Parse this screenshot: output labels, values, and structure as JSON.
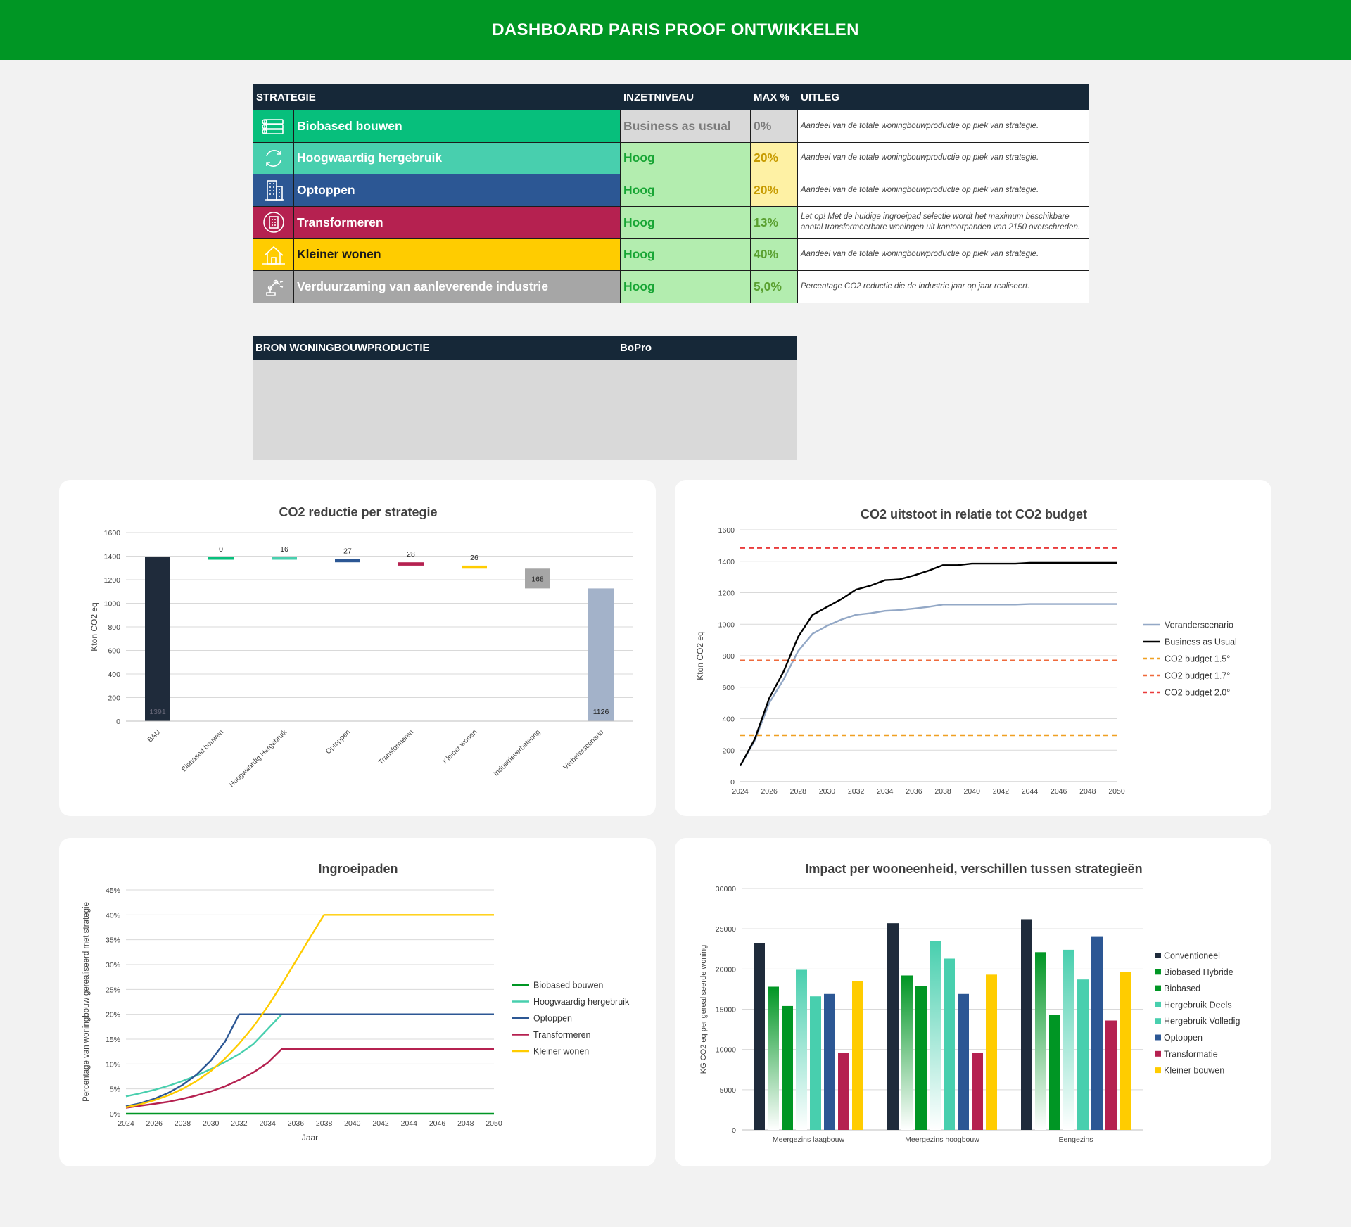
{
  "header": {
    "title": "DASHBOARD PARIS PROOF ONTWIKKELEN"
  },
  "strategy_table": {
    "columns": [
      "STRATEGIE",
      "INZETNIVEAU",
      "MAX %",
      "UITLEG"
    ],
    "rows": [
      {
        "icon": "timber-stack-icon",
        "name": "Biobased bouwen",
        "niveau": "Business as usual",
        "max": "0%",
        "uitleg": "Aandeel van de totale woningbouwproductie op piek van strategie.",
        "color": "#07bf7c"
      },
      {
        "icon": "recycle-arrows-icon",
        "name": "Hoogwaardig hergebruik",
        "niveau": "Hoog",
        "max": "20%",
        "uitleg": "Aandeel van de totale woningbouwproductie op piek van strategie.",
        "color": "#48cfae"
      },
      {
        "icon": "building-icon",
        "name": "Optoppen",
        "niveau": "Hoog",
        "max": "20%",
        "uitleg": "Aandeel van de totale woningbouwproductie op piek van strategie.",
        "color": "#2c5794"
      },
      {
        "icon": "transform-building-icon",
        "name": "Transformeren",
        "niveau": "Hoog",
        "max": "13%",
        "uitleg": "Let op! Met de huidige ingroeipad selectie wordt het maximum beschikbare aantal transformeerbare woningen uit kantoorpanden van 2150 overschreden.",
        "color": "#b52150"
      },
      {
        "icon": "small-house-icon",
        "name": "Kleiner wonen",
        "niveau": "Hoog",
        "max": "40%",
        "uitleg": "Aandeel van de totale woningbouwproductie op piek van strategie.",
        "color": "#ffcc00"
      },
      {
        "icon": "industry-robot-icon",
        "name": "Verduurzaming van aanleverende industrie",
        "niveau": "Hoog",
        "max": "5,0%",
        "uitleg": "Percentage CO2 reductie die de industrie jaar op jaar realiseert.",
        "color": "#a6a6a6"
      }
    ]
  },
  "bron": {
    "label": "BRON WONINGBOUWPRODUCTIE",
    "value": "BoPro"
  },
  "chart_data": [
    {
      "type": "bar",
      "title": "CO2 reductie per strategie",
      "ylabel": "Kton CO2 eq",
      "ylim": [
        0,
        1600
      ],
      "yticks": [
        0,
        200,
        400,
        600,
        800,
        1000,
        1200,
        1400,
        1600
      ],
      "categories": [
        "BAU",
        "Biobased bouwen",
        "Hoogwaardig Hergebruik",
        "Optoppen",
        "Transformeren",
        "Kleiner wonen",
        "Industrieverbetering",
        "Verbeterscenario"
      ],
      "values": [
        1391,
        0,
        16,
        27,
        28,
        26,
        168,
        1126
      ],
      "labels": [
        "1391",
        "0",
        "16",
        "27",
        "28",
        "26",
        "168",
        "1126"
      ],
      "colors": [
        "#1f2b3b",
        "#07bf7c",
        "#48cfae",
        "#2c5794",
        "#b52150",
        "#ffcc00",
        "#a6a6a6",
        "#a3b2c9"
      ],
      "grid": true
    },
    {
      "type": "line",
      "title": "CO2 uitstoot in relatie tot CO2 budget",
      "ylabel": "Kton CO2 eq",
      "ylim": [
        0,
        1600
      ],
      "yticks": [
        0,
        200,
        400,
        600,
        800,
        1000,
        1200,
        1400,
        1600
      ],
      "x": [
        2024,
        2025,
        2026,
        2027,
        2028,
        2029,
        2030,
        2031,
        2032,
        2033,
        2034,
        2035,
        2036,
        2037,
        2038,
        2039,
        2040,
        2041,
        2042,
        2043,
        2044,
        2045,
        2046,
        2047,
        2048,
        2049,
        2050
      ],
      "xticks": [
        2024,
        2026,
        2028,
        2030,
        2032,
        2034,
        2036,
        2038,
        2040,
        2042,
        2044,
        2046,
        2048,
        2050
      ],
      "series": [
        {
          "name": "Veranderscenario",
          "color": "#93a8c6",
          "dash": "",
          "values": [
            100,
            260,
            500,
            650,
            830,
            940,
            990,
            1030,
            1060,
            1070,
            1085,
            1090,
            1100,
            1110,
            1125,
            1125,
            1125,
            1125,
            1125,
            1125,
            1128,
            1128,
            1128,
            1128,
            1128,
            1128,
            1128
          ]
        },
        {
          "name": "Business as Usual",
          "color": "#000000",
          "dash": "",
          "values": [
            100,
            270,
            530,
            700,
            920,
            1060,
            1110,
            1160,
            1220,
            1245,
            1280,
            1285,
            1310,
            1340,
            1375,
            1375,
            1385,
            1385,
            1385,
            1385,
            1390,
            1390,
            1390,
            1390,
            1390,
            1390,
            1390
          ]
        },
        {
          "name": "CO2 budget 1.5°",
          "color": "#f0a022",
          "dash": "7,5",
          "values": [
            295,
            295,
            295,
            295,
            295,
            295,
            295,
            295,
            295,
            295,
            295,
            295,
            295,
            295,
            295,
            295,
            295,
            295,
            295,
            295,
            295,
            295,
            295,
            295,
            295,
            295,
            295
          ]
        },
        {
          "name": "CO2 budget 1.7°",
          "color": "#ef6a3c",
          "dash": "7,5",
          "values": [
            770,
            770,
            770,
            770,
            770,
            770,
            770,
            770,
            770,
            770,
            770,
            770,
            770,
            770,
            770,
            770,
            770,
            770,
            770,
            770,
            770,
            770,
            770,
            770,
            770,
            770,
            770
          ]
        },
        {
          "name": "CO2 budget 2.0°",
          "color": "#e93c3c",
          "dash": "7,5",
          "values": [
            1485,
            1485,
            1485,
            1485,
            1485,
            1485,
            1485,
            1485,
            1485,
            1485,
            1485,
            1485,
            1485,
            1485,
            1485,
            1485,
            1485,
            1485,
            1485,
            1485,
            1485,
            1485,
            1485,
            1485,
            1485,
            1485,
            1485
          ]
        }
      ],
      "legend": "right",
      "grid": true
    },
    {
      "type": "line",
      "title": "Ingroeipaden",
      "xlabel": "Jaar",
      "ylabel": "Percentage van woningbouw gerealiseerd  met strategie",
      "ylim": [
        0,
        45
      ],
      "yticks": [
        0,
        5,
        10,
        15,
        20,
        25,
        30,
        35,
        40,
        45
      ],
      "ytick_labels": [
        "0%",
        "5%",
        "10%",
        "15%",
        "20%",
        "25%",
        "30%",
        "35%",
        "40%",
        "45%"
      ],
      "x": [
        2024,
        2025,
        2026,
        2027,
        2028,
        2029,
        2030,
        2031,
        2032,
        2033,
        2034,
        2035,
        2036,
        2037,
        2038,
        2039,
        2040,
        2041,
        2042,
        2043,
        2044,
        2045,
        2046,
        2047,
        2048,
        2049,
        2050
      ],
      "xticks": [
        2024,
        2026,
        2028,
        2030,
        2032,
        2034,
        2036,
        2038,
        2040,
        2042,
        2044,
        2046,
        2048,
        2050
      ],
      "series": [
        {
          "name": "Biobased bouwen",
          "color": "#009624",
          "values": [
            0,
            0,
            0,
            0,
            0,
            0,
            0,
            0,
            0,
            0,
            0,
            0,
            0,
            0,
            0,
            0,
            0,
            0,
            0,
            0,
            0,
            0,
            0,
            0,
            0,
            0,
            0
          ]
        },
        {
          "name": "Hoogwaardig hergebruik",
          "color": "#48cfae",
          "values": [
            3.5,
            4.1,
            4.8,
            5.6,
            6.6,
            7.7,
            9.0,
            10.4,
            12.0,
            14.0,
            17.0,
            20,
            20,
            20,
            20,
            20,
            20,
            20,
            20,
            20,
            20,
            20,
            20,
            20,
            20,
            20,
            20
          ]
        },
        {
          "name": "Optoppen",
          "color": "#2c5794",
          "values": [
            1.5,
            2.1,
            3.0,
            4.2,
            5.8,
            7.9,
            10.7,
            14.5,
            20,
            20,
            20,
            20,
            20,
            20,
            20,
            20,
            20,
            20,
            20,
            20,
            20,
            20,
            20,
            20,
            20,
            20,
            20
          ]
        },
        {
          "name": "Transformeren",
          "color": "#b52150",
          "values": [
            1.2,
            1.6,
            2.0,
            2.4,
            3.0,
            3.7,
            4.5,
            5.5,
            6.8,
            8.3,
            10.2,
            13,
            13,
            13,
            13,
            13,
            13,
            13,
            13,
            13,
            13,
            13,
            13,
            13,
            13,
            13,
            13
          ]
        },
        {
          "name": "Kleiner wonen",
          "color": "#ffcc00",
          "values": [
            1.3,
            1.9,
            2.7,
            3.7,
            5.0,
            6.6,
            8.6,
            11.1,
            14.1,
            17.5,
            21.5,
            26.0,
            30.7,
            35.4,
            40,
            40,
            40,
            40,
            40,
            40,
            40,
            40,
            40,
            40,
            40,
            40,
            40
          ]
        }
      ],
      "legend": "right",
      "grid": true
    },
    {
      "type": "bar",
      "title": "Impact per wooneenheid, verschillen tussen strategieën",
      "ylabel": "KG CO2 eq per gerealiseerde woning",
      "ylim": [
        0,
        30000
      ],
      "yticks": [
        0,
        5000,
        10000,
        15000,
        20000,
        25000,
        30000
      ],
      "categories": [
        "Meergezins laagbouw",
        "Meergezins hoogbouw",
        "Eengezins"
      ],
      "series": [
        {
          "name": "Conventioneel",
          "color": "#1f2b3b",
          "gradient": false,
          "values": [
            23200,
            25700,
            26200
          ]
        },
        {
          "name": "Biobased Hybride",
          "color": "#009624",
          "gradient": true,
          "values": [
            17800,
            19200,
            22100
          ]
        },
        {
          "name": "Biobased",
          "color": "#009624",
          "gradient": false,
          "values": [
            15400,
            17900,
            14300
          ]
        },
        {
          "name": "Hergebruik Deels",
          "color": "#48cfae",
          "gradient": true,
          "values": [
            19900,
            23500,
            22400
          ]
        },
        {
          "name": "Hergebruik Volledig",
          "color": "#48cfae",
          "gradient": false,
          "values": [
            16600,
            21300,
            18700
          ]
        },
        {
          "name": "Optoppen",
          "color": "#2c5794",
          "gradient": false,
          "values": [
            16900,
            16900,
            24000
          ]
        },
        {
          "name": "Transformatie",
          "color": "#b52150",
          "gradient": false,
          "values": [
            9600,
            9600,
            13600
          ]
        },
        {
          "name": "Kleiner bouwen",
          "color": "#ffcc00",
          "gradient": false,
          "values": [
            18500,
            19300,
            19600
          ]
        }
      ],
      "legend": "right",
      "grid": true
    }
  ]
}
